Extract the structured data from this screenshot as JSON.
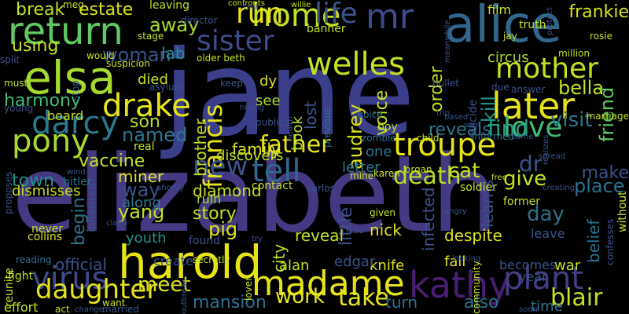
{
  "words": [
    {
      "text": "jane",
      "color": "#3b3f8b"
    },
    {
      "text": "elizabeth",
      "color": "#443983"
    },
    {
      "text": "alice",
      "color": "#31678e"
    },
    {
      "text": "elsa",
      "color": "#a6db2e"
    },
    {
      "text": "harold",
      "color": "#e6e419"
    },
    {
      "text": "kathy",
      "color": "#4b1e76"
    },
    {
      "text": "madame",
      "color": "#e6e419"
    },
    {
      "text": "return",
      "color": "#5fca61"
    },
    {
      "text": "troupe",
      "color": "#e6e419"
    },
    {
      "text": "later",
      "color": "#e6e419"
    },
    {
      "text": "darcy",
      "color": "#2a788e"
    },
    {
      "text": "welles",
      "color": "#c5e021"
    },
    {
      "text": "sister",
      "color": "#3e4a89"
    },
    {
      "text": "home",
      "color": "#c5e021"
    },
    {
      "text": "mr",
      "color": "#3e4a89"
    },
    {
      "text": "life",
      "color": "#3b528b"
    },
    {
      "text": "drake",
      "color": "#e6e419"
    },
    {
      "text": "pony",
      "color": "#a6db2e"
    },
    {
      "text": "virus",
      "color": "#3e4a89"
    },
    {
      "text": "plant",
      "color": "#433e85"
    },
    {
      "text": "tell",
      "color": "#31678e"
    },
    {
      "text": "mother",
      "color": "#c5e021"
    },
    {
      "text": "love",
      "color": "#3fbc73"
    },
    {
      "text": "daughter",
      "color": "#e6e419"
    },
    {
      "text": "francis",
      "color": "#e6e419"
    },
    {
      "text": "father",
      "color": "#e6e419"
    },
    {
      "text": "death",
      "color": "#b5de2b"
    },
    {
      "text": "find",
      "color": "#1fa187"
    },
    {
      "text": "take",
      "color": "#e6e419"
    },
    {
      "text": "work",
      "color": "#e6e419"
    },
    {
      "text": "blair",
      "color": "#c5e021"
    },
    {
      "text": "run",
      "color": "#e6e419"
    },
    {
      "text": "new",
      "color": "#3b528b"
    },
    {
      "text": "woman",
      "color": "#3b528b"
    },
    {
      "text": "lab",
      "color": "#20928c"
    },
    {
      "text": "estate",
      "color": "#dde318"
    },
    {
      "text": "break",
      "color": "#c5e021"
    },
    {
      "text": "away",
      "color": "#a6db2e"
    },
    {
      "text": "using",
      "color": "#c5e021"
    },
    {
      "text": "harmony",
      "color": "#3fbc73"
    },
    {
      "text": "bella",
      "color": "#c5e021"
    },
    {
      "text": "friend",
      "color": "#5fca61"
    },
    {
      "text": "frankie",
      "color": "#d8e219"
    },
    {
      "text": "reveals",
      "color": "#2a788e"
    },
    {
      "text": "cat",
      "color": "#c5e021"
    },
    {
      "text": "visit",
      "color": "#2a788e"
    },
    {
      "text": "dr",
      "color": "#3b528b"
    },
    {
      "text": "make",
      "color": "#3b528b"
    },
    {
      "text": "give",
      "color": "#c5e021"
    },
    {
      "text": "place",
      "color": "#2c718e"
    },
    {
      "text": "day",
      "color": "#2c718e"
    },
    {
      "text": "son",
      "color": "#b5de2b"
    },
    {
      "text": "named",
      "color": "#2a788e"
    },
    {
      "text": "order",
      "color": "#c5e021"
    },
    {
      "text": "voice",
      "color": "#c5e021"
    },
    {
      "text": "audrey",
      "color": "#dde318"
    },
    {
      "text": "lost",
      "color": "#3b528b"
    },
    {
      "text": "book",
      "color": "#b5de2b"
    },
    {
      "text": "dy",
      "color": "#dde318"
    },
    {
      "text": "little",
      "color": "#3b528b"
    },
    {
      "text": "letter",
      "color": "#2a788e"
    },
    {
      "text": "family",
      "color": "#dde318"
    },
    {
      "text": "vaccine",
      "color": "#c5e021"
    },
    {
      "text": "miner",
      "color": "#dde318"
    },
    {
      "text": "town",
      "color": "#20928c"
    },
    {
      "text": "yang",
      "color": "#c5e021"
    },
    {
      "text": "pig",
      "color": "#dde318"
    },
    {
      "text": "story",
      "color": "#c5e021"
    },
    {
      "text": "city",
      "color": "#c5e021"
    },
    {
      "text": "diamond",
      "color": "#c5e021"
    },
    {
      "text": "ruin",
      "color": "#a6db2e"
    },
    {
      "text": "begin",
      "color": "#2c718e"
    },
    {
      "text": "way",
      "color": "#3b528b"
    },
    {
      "text": "along",
      "color": "#2a788e"
    },
    {
      "text": "youth",
      "color": "#20928c"
    },
    {
      "text": "meet",
      "color": "#dde318"
    },
    {
      "text": "mansion",
      "color": "#2c718e"
    },
    {
      "text": "turn",
      "color": "#2c718e"
    },
    {
      "text": "also",
      "color": "#2c718e"
    },
    {
      "text": "time",
      "color": "#2c718e"
    },
    {
      "text": "war",
      "color": "#c5e021"
    },
    {
      "text": "becomes",
      "color": "#3b528b"
    },
    {
      "text": "fall",
      "color": "#dde318"
    },
    {
      "text": "knife",
      "color": "#dde318"
    },
    {
      "text": "despite",
      "color": "#dde318"
    },
    {
      "text": "infected",
      "color": "#3b528b"
    },
    {
      "text": "learns",
      "color": "#3b528b"
    },
    {
      "text": "kill",
      "color": "#20928c"
    },
    {
      "text": "circus",
      "color": "#a6db2e"
    },
    {
      "text": "official",
      "color": "#3b528b"
    },
    {
      "text": "nick",
      "color": "#dde318"
    },
    {
      "text": "reveal",
      "color": "#c5e021"
    },
    {
      "text": "edgar",
      "color": "#3b528b"
    },
    {
      "text": "alan",
      "color": "#c5e021"
    },
    {
      "text": "one",
      "color": "#2c718e"
    },
    {
      "text": "belief",
      "color": "#2c718e"
    },
    {
      "text": "year",
      "color": "#3b528b"
    },
    {
      "text": "brother",
      "color": "#c5e021"
    },
    {
      "text": "died",
      "color": "#c5e021"
    },
    {
      "text": "see",
      "color": "#a6db2e"
    },
    {
      "text": "discovers",
      "color": "#c5e021"
    },
    {
      "text": "board",
      "color": "#c5e021"
    },
    {
      "text": "dismisses",
      "color": "#c5e021"
    },
    {
      "text": "hitler",
      "color": "#2c718e"
    },
    {
      "text": "real",
      "color": "#c5e021"
    },
    {
      "text": "inherited",
      "color": "#3b528b"
    },
    {
      "text": "never",
      "color": "#c5e021"
    },
    {
      "text": "collins",
      "color": "#dde318"
    },
    {
      "text": "reunite",
      "color": "#c5e021"
    },
    {
      "text": "fight",
      "color": "#c5e021"
    },
    {
      "text": "effort",
      "color": "#c5e021"
    },
    {
      "text": "reading",
      "color": "#2c718e"
    },
    {
      "text": "act",
      "color": "#c5e021"
    },
    {
      "text": "want",
      "color": "#c5e021"
    },
    {
      "text": "married",
      "color": "#3b528b"
    },
    {
      "text": "leave",
      "color": "#3b528b"
    },
    {
      "text": "soldier",
      "color": "#c5e021"
    },
    {
      "text": "former",
      "color": "#c5e021"
    },
    {
      "text": "contact",
      "color": "#c5e021"
    },
    {
      "text": "found",
      "color": "#3b528b"
    },
    {
      "text": "create",
      "color": "#3b528b"
    },
    {
      "text": "secretly",
      "color": "#c5e021"
    },
    {
      "text": "lover",
      "color": "#c5e021"
    },
    {
      "text": "suicide",
      "color": "#3b528b"
    },
    {
      "text": "previous",
      "color": "#2c718e"
    },
    {
      "text": "voice",
      "color": "#2c718e"
    },
    {
      "text": "informed",
      "color": "#2c718e"
    },
    {
      "text": "boy",
      "color": "#c5e021"
    },
    {
      "text": "child",
      "color": "#c5e021"
    },
    {
      "text": "zombie",
      "color": "#2c718e"
    },
    {
      "text": "film",
      "color": "#c5e021"
    },
    {
      "text": "truth",
      "color": "#c5e021"
    },
    {
      "text": "jay",
      "color": "#c5e021"
    },
    {
      "text": "rosie",
      "color": "#c5e021"
    },
    {
      "text": "million",
      "color": "#c5e021"
    },
    {
      "text": "marriage",
      "color": "#c5e021"
    },
    {
      "text": "without",
      "color": "#c5e021"
    },
    {
      "text": "confesses",
      "color": "#3b528b"
    },
    {
      "text": "meg",
      "color": "#c5e021"
    },
    {
      "text": "confronts",
      "color": "#c5e021"
    },
    {
      "text": "banner",
      "color": "#c5e021"
    },
    {
      "text": "director",
      "color": "#3b528b"
    },
    {
      "text": "stage",
      "color": "#c5e021"
    },
    {
      "text": "split",
      "color": "#3b528b"
    },
    {
      "text": "older beth",
      "color": "#c5e021"
    },
    {
      "text": "would",
      "color": "#c5e021"
    },
    {
      "text": "suspicion",
      "color": "#c5e021"
    },
    {
      "text": "stop",
      "color": "#3b528b"
    },
    {
      "text": "must",
      "color": "#c5e021"
    },
    {
      "text": "young",
      "color": "#3b528b"
    },
    {
      "text": "asylum",
      "color": "#3b528b"
    },
    {
      "text": "keep",
      "color": "#3b528b"
    },
    {
      "text": "hiding",
      "color": "#3b528b"
    },
    {
      "text": "public",
      "color": "#3b528b"
    },
    {
      "text": "health",
      "color": "#3b528b"
    },
    {
      "text": "bullet",
      "color": "#3b528b"
    },
    {
      "text": "answer",
      "color": "#3b528b"
    },
    {
      "text": "due",
      "color": "#3b528b"
    },
    {
      "text": "soul",
      "color": "#3b528b"
    },
    {
      "text": "based",
      "color": "#3b528b"
    },
    {
      "text": "trip",
      "color": "#3b528b"
    },
    {
      "text": "organ",
      "color": "#c5e021"
    },
    {
      "text": "karen",
      "color": "#c5e021"
    },
    {
      "text": "mine",
      "color": "#c5e021"
    },
    {
      "text": "carlos",
      "color": "#3b528b"
    },
    {
      "text": "given",
      "color": "#c5e021"
    },
    {
      "text": "angry",
      "color": "#3b528b"
    },
    {
      "text": "read",
      "color": "#3b528b"
    },
    {
      "text": "try",
      "color": "#3b528b"
    },
    {
      "text": "claim",
      "color": "#3b528b"
    },
    {
      "text": "shortly",
      "color": "#3b528b"
    },
    {
      "text": "free",
      "color": "#c5e021"
    },
    {
      "text": "creating",
      "color": "#3b528b"
    },
    {
      "text": "spread",
      "color": "#3b528b"
    },
    {
      "text": "realizes",
      "color": "#3b528b"
    },
    {
      "text": "name",
      "color": "#3b528b"
    },
    {
      "text": "community",
      "color": "#c5e021"
    },
    {
      "text": "soon",
      "color": "#3b528b"
    },
    {
      "text": "looking",
      "color": "#3b528b"
    },
    {
      "text": "wind",
      "color": "#3b528b"
    },
    {
      "text": "change",
      "color": "#3b528b"
    },
    {
      "text": "outbreak",
      "color": "#3b528b"
    },
    {
      "text": "proposes",
      "color": "#3b528b"
    },
    {
      "text": "willie",
      "color": "#c5e021"
    },
    {
      "text": "test",
      "color": "#3b528b"
    },
    {
      "text": "protect",
      "color": "#3b528b"
    },
    {
      "text": "meanwhile",
      "color": "#3b528b"
    },
    {
      "text": "leaving",
      "color": "#c5e021"
    }
  ]
}
